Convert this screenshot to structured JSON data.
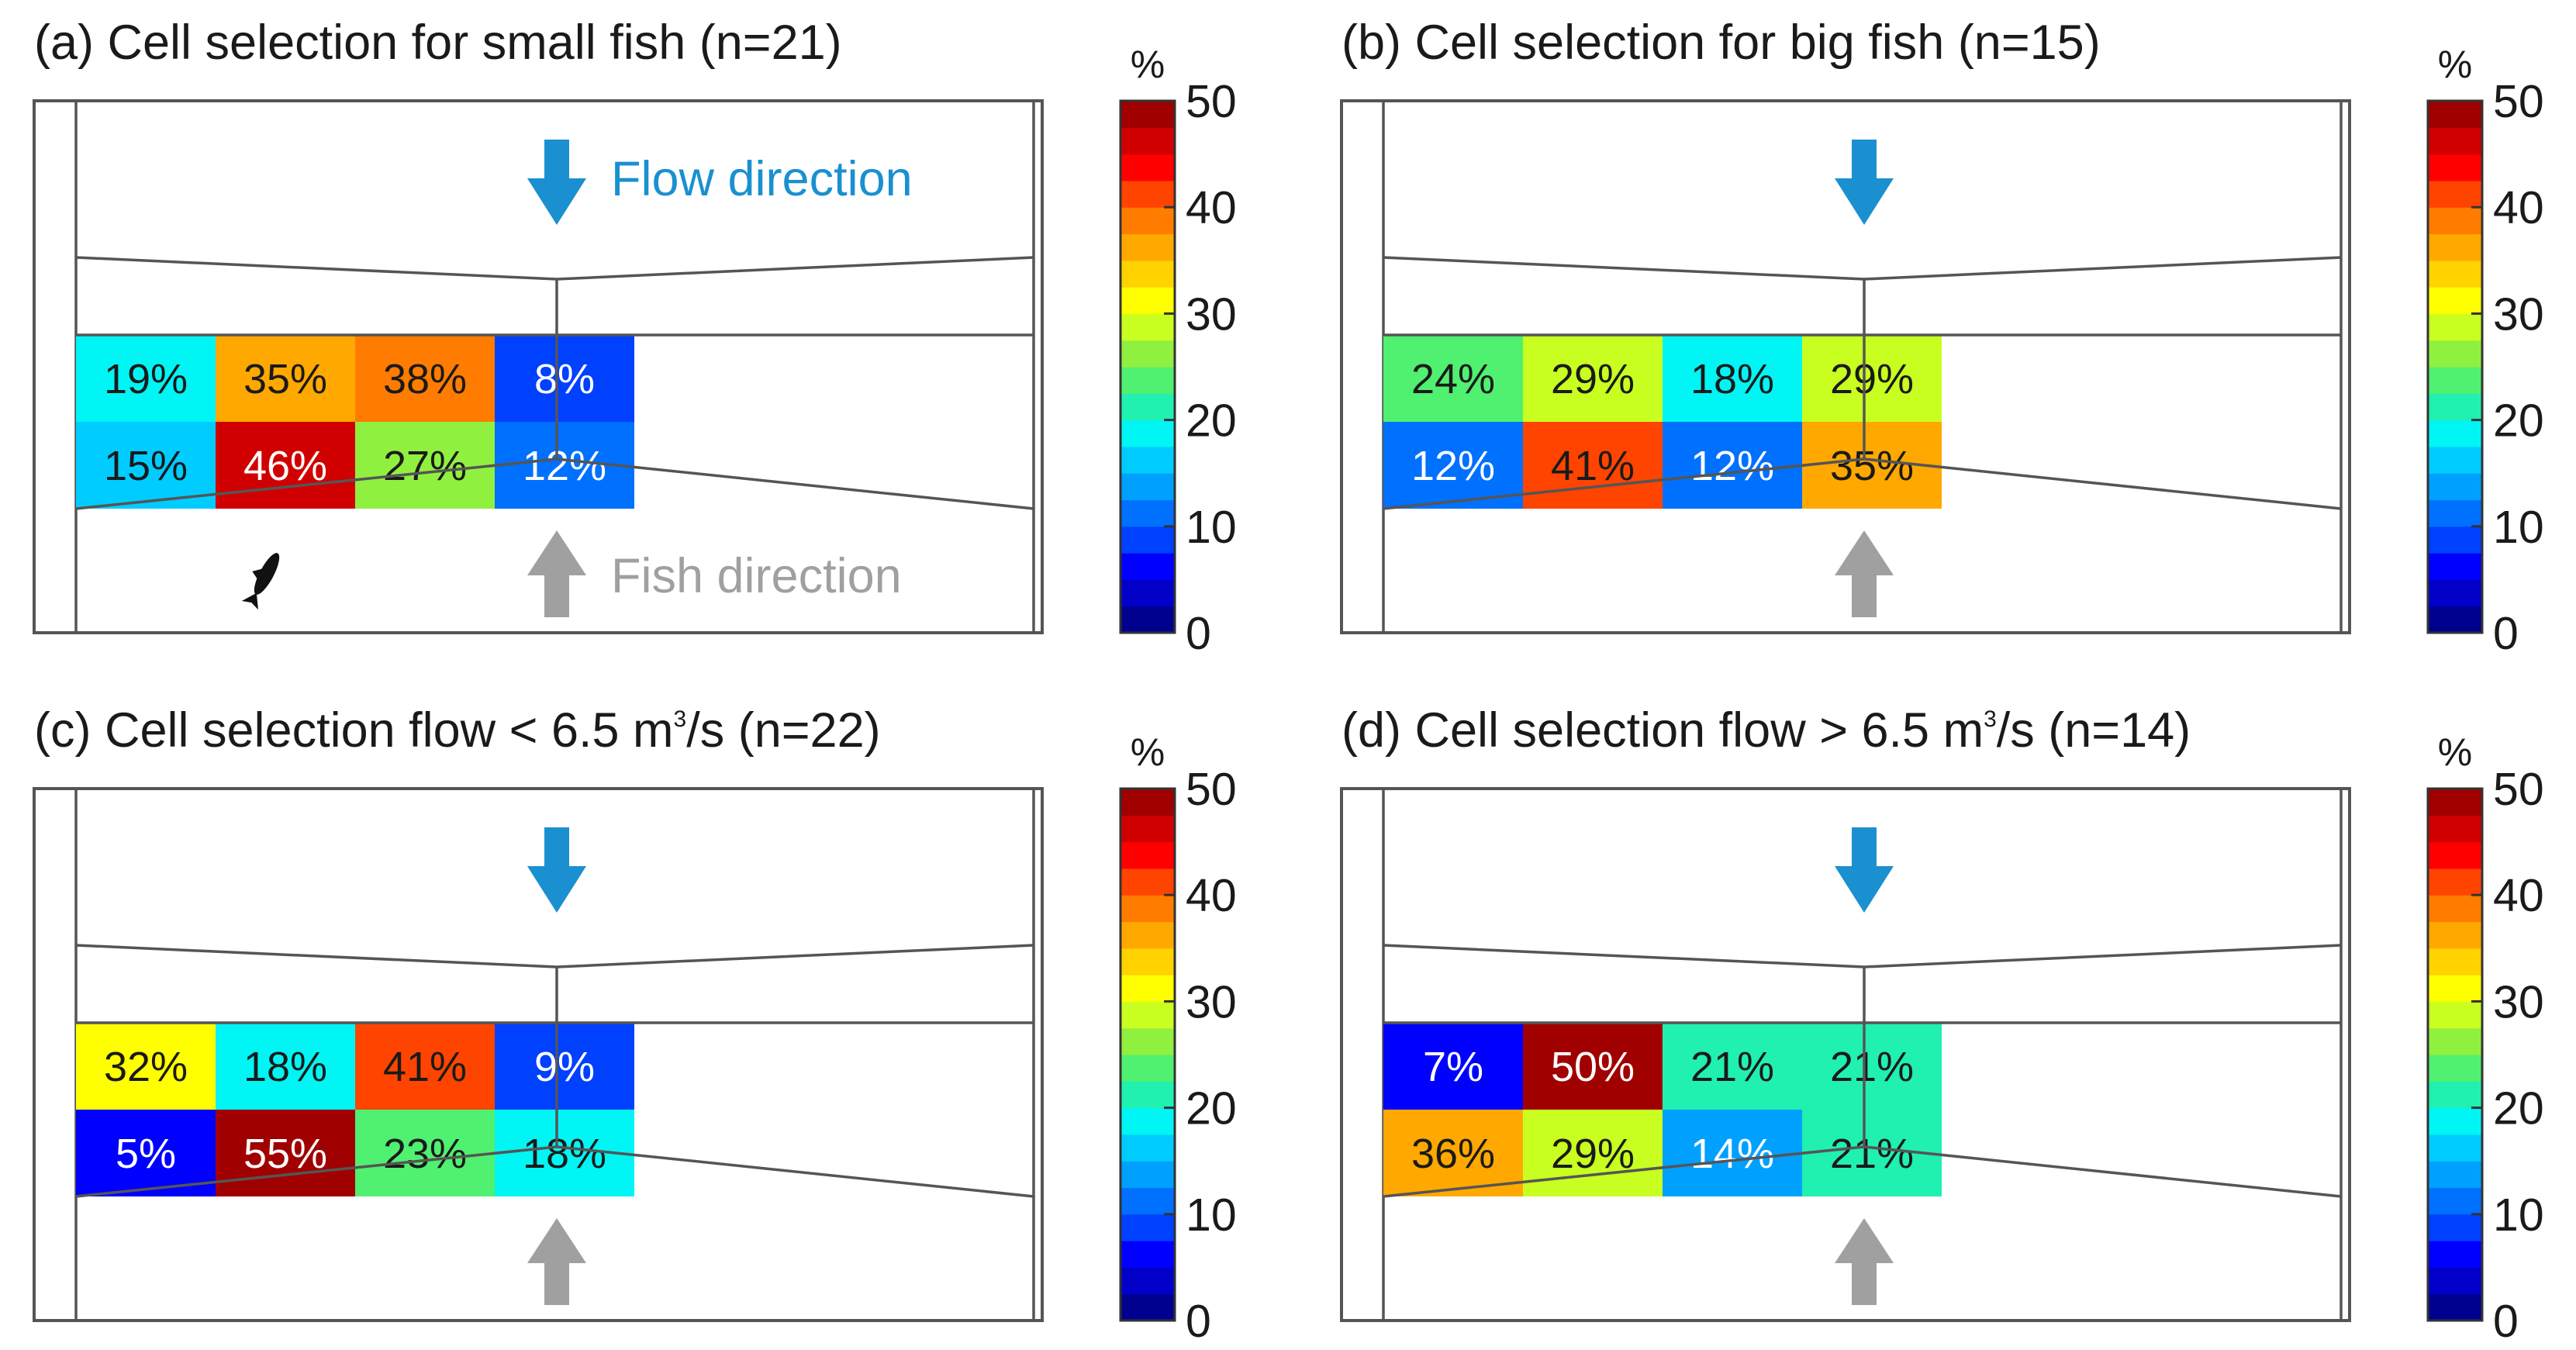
{
  "chart_data": [
    {
      "type": "heatmap",
      "panel": "a",
      "title": "(a) Cell selection for small fish (n=21)",
      "rows": 2,
      "cols": 4,
      "values": [
        [
          19,
          35,
          38,
          8
        ],
        [
          15,
          46,
          27,
          12
        ]
      ],
      "labels": [
        [
          "19%",
          "35%",
          "38%",
          "8%"
        ],
        [
          "15%",
          "46%",
          "27%",
          "12%"
        ]
      ],
      "flow_label": "Flow direction",
      "fish_label": "Fish direction",
      "fish_icon": "fish-icon",
      "colorbar": {
        "unit": "%",
        "range": [
          0,
          50
        ],
        "ticks": [
          "0",
          "10",
          "20",
          "30",
          "40",
          "50"
        ]
      }
    },
    {
      "type": "heatmap",
      "panel": "b",
      "title": "(b) Cell selection for big fish (n=15)",
      "rows": 2,
      "cols": 4,
      "values": [
        [
          24,
          29,
          18,
          29
        ],
        [
          12,
          41,
          12,
          35
        ]
      ],
      "labels": [
        [
          "24%",
          "29%",
          "18%",
          "29%"
        ],
        [
          "12%",
          "41%",
          "12%",
          "35%"
        ]
      ],
      "colorbar": {
        "unit": "%",
        "range": [
          0,
          50
        ],
        "ticks": [
          "0",
          "10",
          "20",
          "30",
          "40",
          "50"
        ]
      }
    },
    {
      "type": "heatmap",
      "panel": "c",
      "title_main": "(c) Cell selection flow < 6.5 m",
      "title_sup": "3",
      "title_tail": "/s (n=22)",
      "rows": 2,
      "cols": 4,
      "values": [
        [
          32,
          18,
          41,
          9
        ],
        [
          5,
          55,
          23,
          18
        ]
      ],
      "labels": [
        [
          "32%",
          "18%",
          "41%",
          "9%"
        ],
        [
          "5%",
          "55%",
          "23%",
          "18%"
        ]
      ],
      "colorbar": {
        "unit": "%",
        "range": [
          0,
          50
        ],
        "ticks": [
          "0",
          "10",
          "20",
          "30",
          "40",
          "50"
        ]
      }
    },
    {
      "type": "heatmap",
      "panel": "d",
      "title_main": "(d) Cell selection flow > 6.5 m",
      "title_sup": "3",
      "title_tail": "/s (n=14)",
      "rows": 2,
      "cols": 4,
      "values": [
        [
          7,
          50,
          21,
          21
        ],
        [
          36,
          29,
          14,
          21
        ]
      ],
      "labels": [
        [
          "7%",
          "50%",
          "21%",
          "21%"
        ],
        [
          "36%",
          "29%",
          "14%",
          "21%"
        ]
      ],
      "colorbar": {
        "unit": "%",
        "range": [
          0,
          50
        ],
        "ticks": [
          "0",
          "10",
          "20",
          "30",
          "40",
          "50"
        ]
      }
    }
  ],
  "colors": {
    "frame": "#555555",
    "flow_arrow": "#1a90d0",
    "fish_arrow": "#a0a0a0",
    "text_dark": "#1a1a1a",
    "text_light": "#ffffff"
  }
}
